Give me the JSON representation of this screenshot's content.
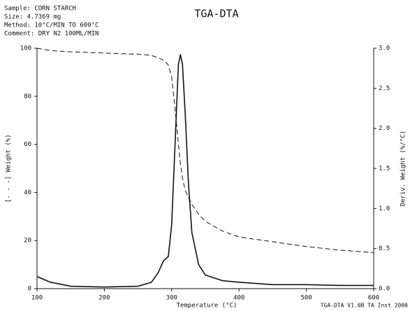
{
  "chart_data": {
    "type": "line",
    "title": "TGA-DTA",
    "info": [
      "Sample: CORN STARCH",
      "Size:   4.7369 mg",
      "Method: 10°C/MIN TO 600°C",
      "Comment: DRY N2 100ML/MIN"
    ],
    "footer": "TGA-DTA V1.0B TA Inst 2000",
    "x_label": "Temperature (°C)",
    "y_label": "[- - -] Weight (%)",
    "y2_label": "Deriv. Weight (%/°C)",
    "x": [
      100,
      120,
      150,
      200,
      250,
      270,
      280,
      288,
      295,
      300,
      305,
      310,
      313,
      316,
      320,
      325,
      330,
      340,
      350,
      375,
      400,
      450,
      500,
      550,
      600
    ],
    "series": [
      {
        "name": "Weight",
        "color": "#111111",
        "dash": true,
        "values": [
          100,
          99,
          98.5,
          98,
          97.5,
          97,
          96,
          95,
          93,
          88,
          75,
          60,
          52,
          46,
          41,
          38,
          35,
          31,
          28,
          24,
          21.5,
          19.5,
          17.5,
          16,
          15
        ]
      },
      {
        "name": "Deriv. Weight",
        "color": "#111111",
        "dash": false,
        "axis": "y2",
        "values": [
          0.15,
          0.08,
          0.03,
          0.02,
          0.03,
          0.08,
          0.2,
          0.35,
          0.4,
          0.8,
          1.8,
          2.8,
          2.92,
          2.8,
          2.2,
          1.3,
          0.7,
          0.3,
          0.17,
          0.1,
          0.08,
          0.05,
          0.05,
          0.04,
          0.04
        ]
      }
    ],
    "xlim": [
      100,
      600
    ],
    "xticks": [
      100,
      200,
      300,
      400,
      500,
      600
    ],
    "ylim": [
      0,
      100
    ],
    "yticks": [
      0,
      20,
      40,
      60,
      80,
      100
    ],
    "y2lim": [
      0,
      3
    ],
    "y2ticks": [
      {
        "value": 0,
        "label": "0.0"
      },
      0.5,
      {
        "value": 1,
        "label": "1.0"
      },
      1.5,
      {
        "value": 2,
        "label": "2.0"
      },
      2.5,
      {
        "value": 3,
        "label": "3.0"
      }
    ],
    "grid": false
  }
}
